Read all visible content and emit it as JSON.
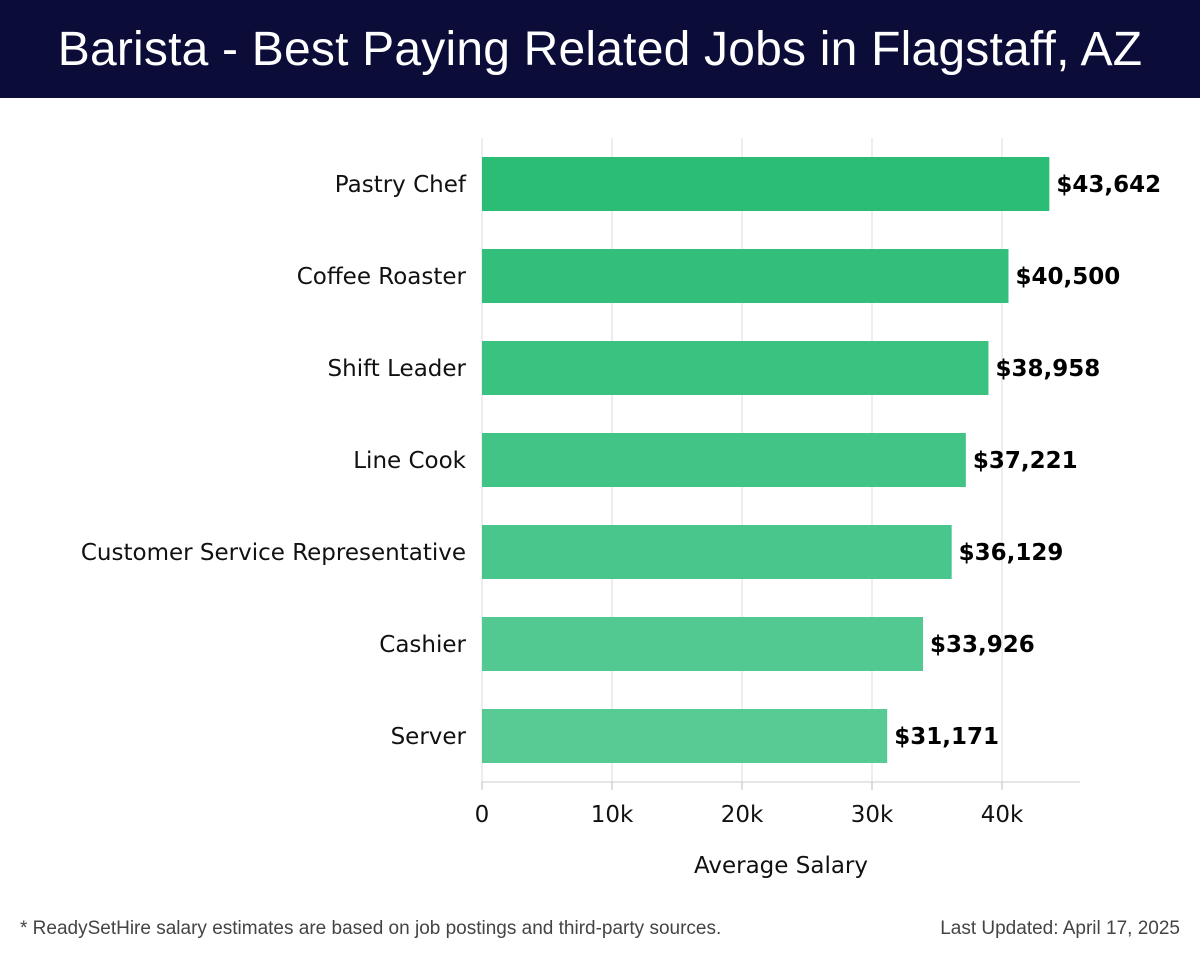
{
  "header": {
    "title": "Barista - Best Paying Related Jobs in Flagstaff, AZ"
  },
  "chart_data": {
    "type": "bar",
    "orientation": "horizontal",
    "title": "Barista - Best Paying Related Jobs in Flagstaff, AZ",
    "xlabel": "Average Salary",
    "ylabel": "",
    "categories": [
      "Pastry Chef",
      "Coffee Roaster",
      "Shift Leader",
      "Line Cook",
      "Customer Service Representative",
      "Cashier",
      "Server"
    ],
    "values": [
      43642,
      40500,
      38958,
      37221,
      36129,
      33926,
      31171
    ],
    "value_labels": [
      "$43,642",
      "$40,500",
      "$38,958",
      "$37,221",
      "$36,129",
      "$33,926",
      "$31,171"
    ],
    "xlim": [
      0,
      46000
    ],
    "x_ticks": [
      0,
      10000,
      20000,
      30000,
      40000
    ],
    "x_tick_labels": [
      "0",
      "10k",
      "20k",
      "30k",
      "40k"
    ],
    "grid": "vertical",
    "bar_color_top": "#2bbd76",
    "bar_color_bottom": "#58cb95",
    "grid_color": "#dddddd"
  },
  "footer": {
    "note": "* ReadySetHire salary estimates are based on job postings and third-party sources.",
    "updated": "Last Updated: April 17, 2025"
  }
}
